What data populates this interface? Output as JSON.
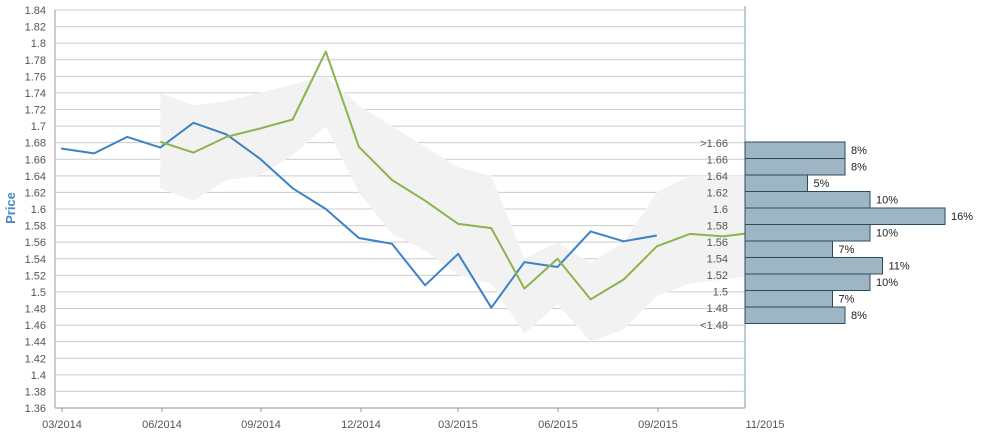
{
  "chart_data": {
    "type": "line",
    "ylabel": "Price",
    "ylim": [
      1.36,
      1.84
    ],
    "y_ticks": [
      "1.36",
      "1.38",
      "1.4",
      "1.42",
      "1.44",
      "1.46",
      "1.48",
      "1.5",
      "1.52",
      "1.54",
      "1.56",
      "1.58",
      "1.6",
      "1.62",
      "1.64",
      "1.66",
      "1.68",
      "1.7",
      "1.72",
      "1.74",
      "1.76",
      "1.78",
      "1.8",
      "1.82",
      "1.84"
    ],
    "x_ticks": [
      "03/2014",
      "06/2014",
      "09/2014",
      "12/2014",
      "03/2015",
      "06/2015",
      "09/2015",
      "11/2015"
    ],
    "series": [
      {
        "color": "#3b82c8",
        "x": [
          0,
          1,
          2,
          3,
          4,
          5,
          6,
          7,
          8,
          9,
          10,
          11,
          12,
          13,
          14,
          15,
          16,
          17,
          18
        ],
        "values": [
          1.673,
          1.667,
          1.687,
          1.674,
          1.704,
          1.69,
          1.661,
          1.625,
          1.6,
          1.565,
          1.558,
          1.508,
          1.546,
          1.481,
          1.536,
          1.53,
          1.573,
          1.561,
          1.568
        ]
      },
      {
        "color": "#8db34f",
        "x": [
          3,
          4,
          5,
          6,
          7,
          8,
          9,
          10,
          11,
          12,
          13,
          14,
          15,
          16,
          17,
          18,
          19,
          20,
          21
        ],
        "values": [
          1.681,
          1.668,
          1.687,
          1.697,
          1.708,
          1.79,
          1.675,
          1.635,
          1.61,
          1.582,
          1.577,
          1.504,
          1.54,
          1.491,
          1.515,
          1.555,
          1.57,
          1.567,
          1.572
        ]
      }
    ],
    "band": {
      "color": "#f2f2f2",
      "x": [
        3,
        4,
        5,
        6,
        7,
        8,
        9,
        10,
        11,
        12,
        13,
        14,
        15,
        16,
        17,
        18,
        19,
        20,
        21
      ],
      "upper": [
        1.74,
        1.725,
        1.73,
        1.74,
        1.75,
        1.76,
        1.725,
        1.7,
        1.675,
        1.65,
        1.64,
        1.54,
        1.56,
        1.535,
        1.56,
        1.62,
        1.64,
        1.64,
        1.64
      ],
      "lower": [
        1.625,
        1.61,
        1.635,
        1.64,
        1.665,
        1.7,
        1.62,
        1.57,
        1.55,
        1.52,
        1.51,
        1.45,
        1.485,
        1.44,
        1.455,
        1.495,
        1.51,
        1.515,
        1.52
      ]
    },
    "histogram": {
      "color": "#9eb5c4",
      "bins": [
        {
          "label": ">1.66",
          "y": 1.67,
          "percent": 8,
          "text": "8%"
        },
        {
          "label": "1.66",
          "y": 1.65,
          "percent": 8,
          "text": "8%"
        },
        {
          "label": "1.64",
          "y": 1.63,
          "percent": 5,
          "text": "5%"
        },
        {
          "label": "1.62",
          "y": 1.61,
          "percent": 10,
          "text": "10%"
        },
        {
          "label": "1.6",
          "y": 1.59,
          "percent": 16,
          "text": "16%"
        },
        {
          "label": "1.58",
          "y": 1.57,
          "percent": 10,
          "text": "10%"
        },
        {
          "label": "1.56",
          "y": 1.55,
          "percent": 7,
          "text": "7%"
        },
        {
          "label": "1.54",
          "y": 1.53,
          "percent": 11,
          "text": "11%"
        },
        {
          "label": "1.52",
          "y": 1.51,
          "percent": 10,
          "text": "10%"
        },
        {
          "label": "1.5",
          "y": 1.49,
          "percent": 7,
          "text": "7%"
        },
        {
          "label": "1.48",
          "y": 1.47,
          "percent": 8,
          "text": "8%"
        },
        {
          "label": "<1.48",
          "y": 1.47,
          "percent": null,
          "text": ""
        }
      ]
    },
    "grid": true
  }
}
